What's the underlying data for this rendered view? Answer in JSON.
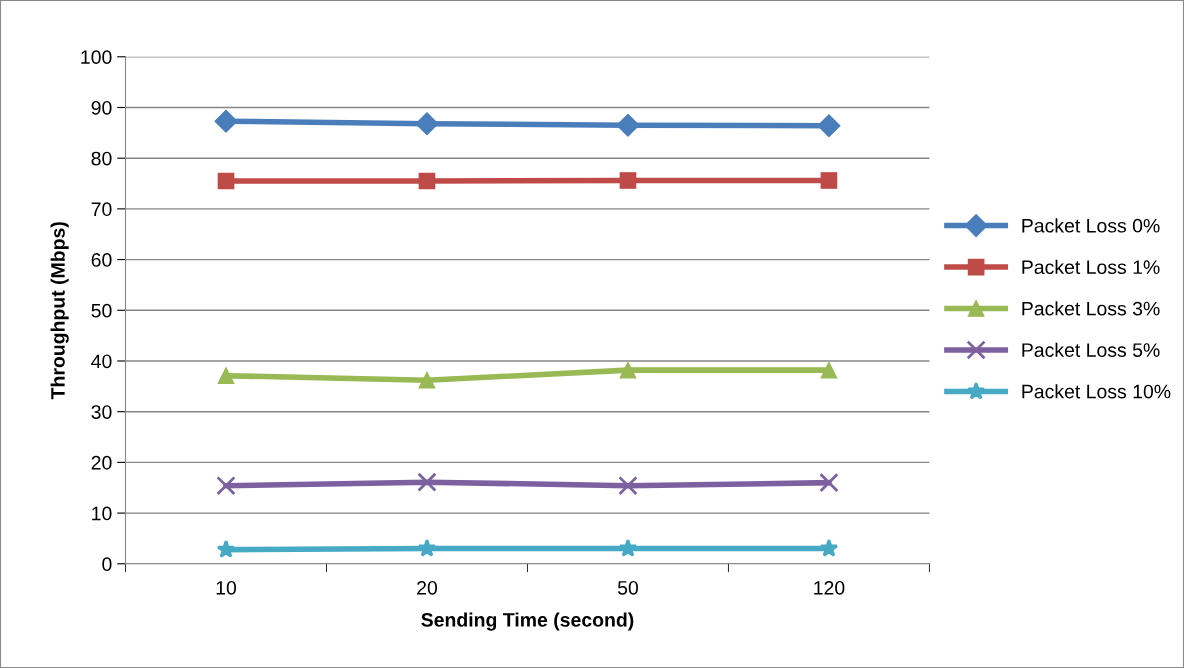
{
  "chart_data": {
    "type": "line",
    "xlabel": "Sending Time (second)",
    "ylabel": "Throughput (Mbps)",
    "categories": [
      "10",
      "20",
      "50",
      "120"
    ],
    "ylim": [
      0,
      100
    ],
    "yticks": [
      0,
      10,
      20,
      30,
      40,
      50,
      60,
      70,
      80,
      90,
      100
    ],
    "grid": "y",
    "legend": "right",
    "line_style": "solid",
    "series": [
      {
        "name": "Packet Loss 0%",
        "color": "#4a7ebb",
        "marker": "diamond",
        "values": [
          87.3,
          86.8,
          86.5,
          86.4
        ]
      },
      {
        "name": "Packet Loss 1%",
        "color": "#be4b48",
        "marker": "square",
        "values": [
          75.5,
          75.5,
          75.6,
          75.6
        ]
      },
      {
        "name": "Packet Loss 3%",
        "color": "#98b954",
        "marker": "triangle",
        "values": [
          37.1,
          36.2,
          38.2,
          38.2
        ]
      },
      {
        "name": "Packet Loss 5%",
        "color": "#7d60a0",
        "marker": "cross",
        "values": [
          15.4,
          16.1,
          15.4,
          16.0
        ]
      },
      {
        "name": "Packet Loss 10%",
        "color": "#46aac5",
        "marker": "star",
        "values": [
          2.8,
          3.0,
          3.0,
          3.0
        ]
      }
    ]
  }
}
